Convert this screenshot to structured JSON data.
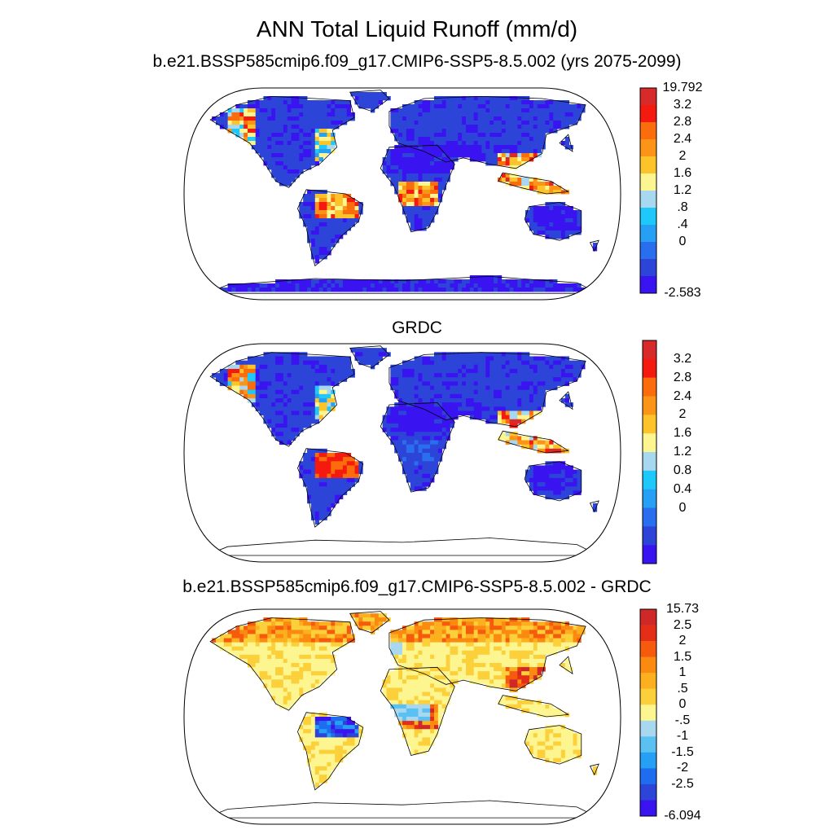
{
  "figure": {
    "title": "ANN Total Liquid Runoff (mm/d)"
  },
  "panels": [
    {
      "id": "model",
      "title": "b.e21.BSSP585cmip6.f09_g17.CMIP6-SSP5-8.5.002 (yrs 2075-2099)",
      "colorbar": {
        "colors": [
          "#3a14f0",
          "#2d44d8",
          "#2a6ef0",
          "#25a0f5",
          "#1ec8fa",
          "#a8d8f0",
          "#fdf58f",
          "#fcc32a",
          "#fc9418",
          "#fb6c0c",
          "#f51a0f",
          "#d82a2a"
        ],
        "labels": [
          "19.792",
          "3.2",
          "2.8",
          "2.4",
          "2",
          "1.6",
          "1.2",
          ".8",
          ".4",
          "0",
          "-2.583"
        ]
      },
      "land_palette": "runoff",
      "show_antarctic_band": true
    },
    {
      "id": "obs",
      "title": "GRDC",
      "colorbar": {
        "colors": [
          "#3a14f0",
          "#2d44d8",
          "#2a6ef0",
          "#25a0f5",
          "#1ec8fa",
          "#a8d8f0",
          "#fdf58f",
          "#fcc32a",
          "#fc9418",
          "#fb6c0c",
          "#f51a0f",
          "#d82a2a"
        ],
        "labels": [
          "3.2",
          "2.8",
          "2.4",
          "2",
          "1.6",
          "1.2",
          "0.8",
          "0.4",
          "0"
        ]
      },
      "land_palette": "runoff",
      "show_antarctic_band": false
    },
    {
      "id": "diff",
      "title": "b.e21.BSSP585cmip6.f09_g17.CMIP6-SSP5-8.5.002 - GRDC",
      "colorbar": {
        "colors": [
          "#3a14f0",
          "#2d44d8",
          "#1e6cf0",
          "#25a0f5",
          "#5bc0f2",
          "#a8d8f0",
          "#fdf58f",
          "#fcd03a",
          "#fcb020",
          "#fb8a10",
          "#f65a0c",
          "#e52e18",
          "#d02828"
        ],
        "labels": [
          "15.73",
          "2.5",
          "2",
          "1.5",
          "1",
          ".5",
          "0",
          "-.5",
          "-1",
          "-1.5",
          "-2",
          "-2.5",
          "-6.094"
        ]
      },
      "land_palette": "diff",
      "show_antarctic_band": false
    }
  ]
}
